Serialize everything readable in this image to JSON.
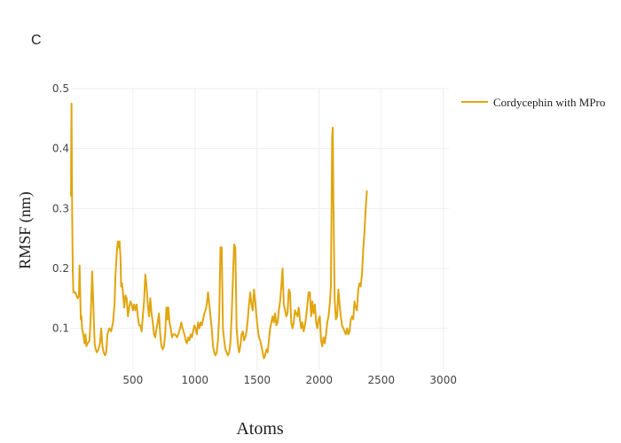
{
  "chart_data": {
    "type": "line",
    "panel_label": "C",
    "xlabel": "Atoms",
    "ylabel": "RMSF (nm)",
    "xlim": [
      1,
      3045
    ],
    "ylim": [
      0.03,
      0.5
    ],
    "x_ticks": [
      500,
      1000,
      1500,
      2000,
      2500,
      3000
    ],
    "y_ticks": [
      0.1,
      0.2,
      0.3,
      0.4,
      0.5
    ],
    "grid": true,
    "legend_position": "top-right",
    "series": [
      {
        "name": "Cordycephin with MPro",
        "color": "#e1a50f",
        "points": [
          [
            1,
            0.32
          ],
          [
            5,
            0.475
          ],
          [
            10,
            0.3
          ],
          [
            15,
            0.2
          ],
          [
            20,
            0.16
          ],
          [
            35,
            0.16
          ],
          [
            45,
            0.155
          ],
          [
            55,
            0.15
          ],
          [
            65,
            0.155
          ],
          [
            70,
            0.205
          ],
          [
            75,
            0.16
          ],
          [
            80,
            0.115
          ],
          [
            85,
            0.12
          ],
          [
            90,
            0.1
          ],
          [
            100,
            0.09
          ],
          [
            110,
            0.075
          ],
          [
            118,
            0.09
          ],
          [
            125,
            0.07
          ],
          [
            135,
            0.075
          ],
          [
            150,
            0.08
          ],
          [
            160,
            0.12
          ],
          [
            172,
            0.195
          ],
          [
            180,
            0.145
          ],
          [
            192,
            0.075
          ],
          [
            200,
            0.065
          ],
          [
            210,
            0.06
          ],
          [
            222,
            0.065
          ],
          [
            235,
            0.075
          ],
          [
            245,
            0.1
          ],
          [
            255,
            0.07
          ],
          [
            265,
            0.06
          ],
          [
            275,
            0.055
          ],
          [
            285,
            0.06
          ],
          [
            295,
            0.09
          ],
          [
            310,
            0.1
          ],
          [
            325,
            0.095
          ],
          [
            340,
            0.11
          ],
          [
            352,
            0.14
          ],
          [
            360,
            0.19
          ],
          [
            370,
            0.225
          ],
          [
            378,
            0.245
          ],
          [
            385,
            0.235
          ],
          [
            392,
            0.245
          ],
          [
            400,
            0.22
          ],
          [
            405,
            0.17
          ],
          [
            412,
            0.175
          ],
          [
            420,
            0.16
          ],
          [
            430,
            0.135
          ],
          [
            440,
            0.155
          ],
          [
            450,
            0.15
          ],
          [
            460,
            0.12
          ],
          [
            470,
            0.135
          ],
          [
            480,
            0.145
          ],
          [
            490,
            0.14
          ],
          [
            500,
            0.13
          ],
          [
            510,
            0.14
          ],
          [
            520,
            0.13
          ],
          [
            530,
            0.14
          ],
          [
            540,
            0.12
          ],
          [
            550,
            0.105
          ],
          [
            560,
            0.105
          ],
          [
            570,
            0.095
          ],
          [
            580,
            0.12
          ],
          [
            590,
            0.145
          ],
          [
            600,
            0.19
          ],
          [
            610,
            0.17
          ],
          [
            620,
            0.14
          ],
          [
            630,
            0.12
          ],
          [
            640,
            0.15
          ],
          [
            650,
            0.125
          ],
          [
            660,
            0.11
          ],
          [
            670,
            0.09
          ],
          [
            680,
            0.085
          ],
          [
            690,
            0.1
          ],
          [
            700,
            0.11
          ],
          [
            710,
            0.125
          ],
          [
            720,
            0.09
          ],
          [
            730,
            0.07
          ],
          [
            740,
            0.065
          ],
          [
            750,
            0.07
          ],
          [
            760,
            0.09
          ],
          [
            770,
            0.135
          ],
          [
            778,
            0.115
          ],
          [
            785,
            0.135
          ],
          [
            795,
            0.11
          ],
          [
            805,
            0.1
          ],
          [
            815,
            0.085
          ],
          [
            825,
            0.09
          ],
          [
            840,
            0.09
          ],
          [
            855,
            0.085
          ],
          [
            865,
            0.09
          ],
          [
            880,
            0.1
          ],
          [
            890,
            0.11
          ],
          [
            900,
            0.1
          ],
          [
            915,
            0.09
          ],
          [
            925,
            0.08
          ],
          [
            935,
            0.075
          ],
          [
            945,
            0.085
          ],
          [
            955,
            0.08
          ],
          [
            965,
            0.09
          ],
          [
            975,
            0.085
          ],
          [
            985,
            0.095
          ],
          [
            995,
            0.105
          ],
          [
            1005,
            0.1
          ],
          [
            1015,
            0.09
          ],
          [
            1025,
            0.11
          ],
          [
            1035,
            0.1
          ],
          [
            1045,
            0.11
          ],
          [
            1055,
            0.105
          ],
          [
            1065,
            0.115
          ],
          [
            1075,
            0.125
          ],
          [
            1085,
            0.13
          ],
          [
            1095,
            0.14
          ],
          [
            1105,
            0.16
          ],
          [
            1115,
            0.14
          ],
          [
            1125,
            0.12
          ],
          [
            1135,
            0.1
          ],
          [
            1145,
            0.07
          ],
          [
            1155,
            0.06
          ],
          [
            1165,
            0.055
          ],
          [
            1175,
            0.06
          ],
          [
            1185,
            0.08
          ],
          [
            1195,
            0.12
          ],
          [
            1205,
            0.235
          ],
          [
            1215,
            0.235
          ],
          [
            1225,
            0.1
          ],
          [
            1235,
            0.08
          ],
          [
            1245,
            0.065
          ],
          [
            1255,
            0.06
          ],
          [
            1265,
            0.055
          ],
          [
            1275,
            0.06
          ],
          [
            1285,
            0.075
          ],
          [
            1295,
            0.12
          ],
          [
            1305,
            0.18
          ],
          [
            1315,
            0.24
          ],
          [
            1325,
            0.235
          ],
          [
            1335,
            0.1
          ],
          [
            1345,
            0.075
          ],
          [
            1355,
            0.06
          ],
          [
            1365,
            0.07
          ],
          [
            1375,
            0.09
          ],
          [
            1385,
            0.095
          ],
          [
            1395,
            0.08
          ],
          [
            1405,
            0.085
          ],
          [
            1415,
            0.095
          ],
          [
            1425,
            0.115
          ],
          [
            1435,
            0.14
          ],
          [
            1445,
            0.16
          ],
          [
            1455,
            0.14
          ],
          [
            1465,
            0.13
          ],
          [
            1475,
            0.165
          ],
          [
            1485,
            0.145
          ],
          [
            1495,
            0.12
          ],
          [
            1505,
            0.1
          ],
          [
            1515,
            0.085
          ],
          [
            1525,
            0.08
          ],
          [
            1535,
            0.07
          ],
          [
            1545,
            0.06
          ],
          [
            1555,
            0.05
          ],
          [
            1565,
            0.055
          ],
          [
            1575,
            0.065
          ],
          [
            1585,
            0.06
          ],
          [
            1595,
            0.08
          ],
          [
            1605,
            0.1
          ],
          [
            1615,
            0.11
          ],
          [
            1625,
            0.12
          ],
          [
            1635,
            0.11
          ],
          [
            1645,
            0.125
          ],
          [
            1655,
            0.105
          ],
          [
            1665,
            0.11
          ],
          [
            1675,
            0.13
          ],
          [
            1685,
            0.145
          ],
          [
            1695,
            0.17
          ],
          [
            1705,
            0.2
          ],
          [
            1715,
            0.14
          ],
          [
            1725,
            0.13
          ],
          [
            1735,
            0.12
          ],
          [
            1745,
            0.125
          ],
          [
            1755,
            0.165
          ],
          [
            1765,
            0.16
          ],
          [
            1775,
            0.11
          ],
          [
            1785,
            0.1
          ],
          [
            1795,
            0.11
          ],
          [
            1805,
            0.13
          ],
          [
            1815,
            0.125
          ],
          [
            1825,
            0.12
          ],
          [
            1835,
            0.135
          ],
          [
            1845,
            0.115
          ],
          [
            1855,
            0.1
          ],
          [
            1865,
            0.11
          ],
          [
            1875,
            0.095
          ],
          [
            1885,
            0.105
          ],
          [
            1895,
            0.12
          ],
          [
            1905,
            0.14
          ],
          [
            1915,
            0.16
          ],
          [
            1925,
            0.16
          ],
          [
            1935,
            0.12
          ],
          [
            1945,
            0.145
          ],
          [
            1955,
            0.125
          ],
          [
            1965,
            0.14
          ],
          [
            1975,
            0.11
          ],
          [
            1985,
            0.1
          ],
          [
            1995,
            0.115
          ],
          [
            2005,
            0.12
          ],
          [
            2015,
            0.08
          ],
          [
            2025,
            0.07
          ],
          [
            2035,
            0.085
          ],
          [
            2045,
            0.075
          ],
          [
            2055,
            0.09
          ],
          [
            2065,
            0.11
          ],
          [
            2075,
            0.12
          ],
          [
            2085,
            0.14
          ],
          [
            2095,
            0.17
          ],
          [
            2105,
            0.42
          ],
          [
            2110,
            0.435
          ],
          [
            2115,
            0.32
          ],
          [
            2125,
            0.15
          ],
          [
            2135,
            0.115
          ],
          [
            2145,
            0.12
          ],
          [
            2155,
            0.165
          ],
          [
            2165,
            0.14
          ],
          [
            2175,
            0.12
          ],
          [
            2185,
            0.105
          ],
          [
            2195,
            0.1
          ],
          [
            2205,
            0.095
          ],
          [
            2215,
            0.09
          ],
          [
            2225,
            0.1
          ],
          [
            2235,
            0.09
          ],
          [
            2245,
            0.095
          ],
          [
            2255,
            0.115
          ],
          [
            2265,
            0.12
          ],
          [
            2275,
            0.115
          ],
          [
            2285,
            0.145
          ],
          [
            2295,
            0.135
          ],
          [
            2305,
            0.13
          ],
          [
            2315,
            0.165
          ],
          [
            2325,
            0.175
          ],
          [
            2335,
            0.17
          ],
          [
            2345,
            0.19
          ],
          [
            2355,
            0.23
          ],
          [
            2365,
            0.26
          ],
          [
            2375,
            0.3
          ],
          [
            2385,
            0.33
          ]
        ]
      }
    ]
  }
}
